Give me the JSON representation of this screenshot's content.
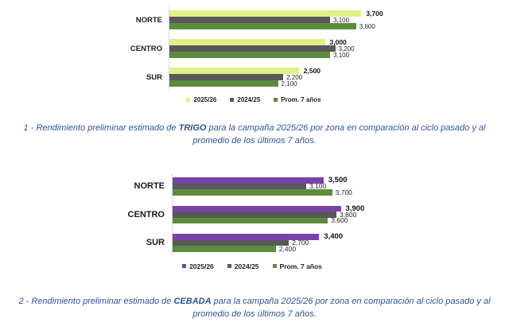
{
  "chart_data": [
    {
      "type": "bar",
      "orientation": "horizontal",
      "title": "",
      "categories": [
        "NORTE",
        "CENTRO",
        "SUR"
      ],
      "series": [
        {
          "name": "2025/26",
          "color": "#e3ef88",
          "values": [
            3700,
            3000,
            2500
          ],
          "label_style": "bold"
        },
        {
          "name": "2024/25",
          "color": "#595959",
          "values": [
            3100,
            3200,
            2200
          ],
          "label_style": "regular"
        },
        {
          "name": "Prom. 7 años",
          "color": "#5e8c3e",
          "values": [
            3600,
            3100,
            2100
          ],
          "label_style": "regular"
        }
      ],
      "xlim": [
        0,
        4000
      ],
      "grid": false,
      "data_labels": "outside-end",
      "number_format": "#,##0",
      "legend_position": "bottom"
    },
    {
      "type": "bar",
      "orientation": "horizontal",
      "title": "",
      "categories": [
        "NORTE",
        "CENTRO",
        "SUR"
      ],
      "series": [
        {
          "name": "2025/26",
          "color": "#7a42a8",
          "values": [
            3500,
            3900,
            3400
          ],
          "label_style": "bold"
        },
        {
          "name": "2024/25",
          "color": "#595959",
          "values": [
            3100,
            3800,
            2700
          ],
          "label_style": "regular"
        },
        {
          "name": "Prom. 7 años",
          "color": "#5e8c3e",
          "values": [
            3700,
            3600,
            2400
          ],
          "label_style": "regular"
        }
      ],
      "xlim": [
        0,
        4000
      ],
      "grid": false,
      "data_labels": "outside-end",
      "number_format": "#,##0",
      "legend_position": "bottom"
    }
  ],
  "captions": [
    {
      "prefix": "1 - Rendimiento preliminar estimado de ",
      "crop": "TRIGO",
      "suffix": " para la campaña 2025/26 por zona en comparación al ciclo pasado y al promedio de los últimos 7 años.",
      "color": "#2f5496"
    },
    {
      "prefix": "2 - Rendimiento preliminar estimado de ",
      "crop": "CEBADA",
      "suffix": " para la campaña 2025/26 por zona en comparación al ciclo pasado y al promedio de los últimos 7 años.",
      "color": "#2f5496"
    }
  ]
}
